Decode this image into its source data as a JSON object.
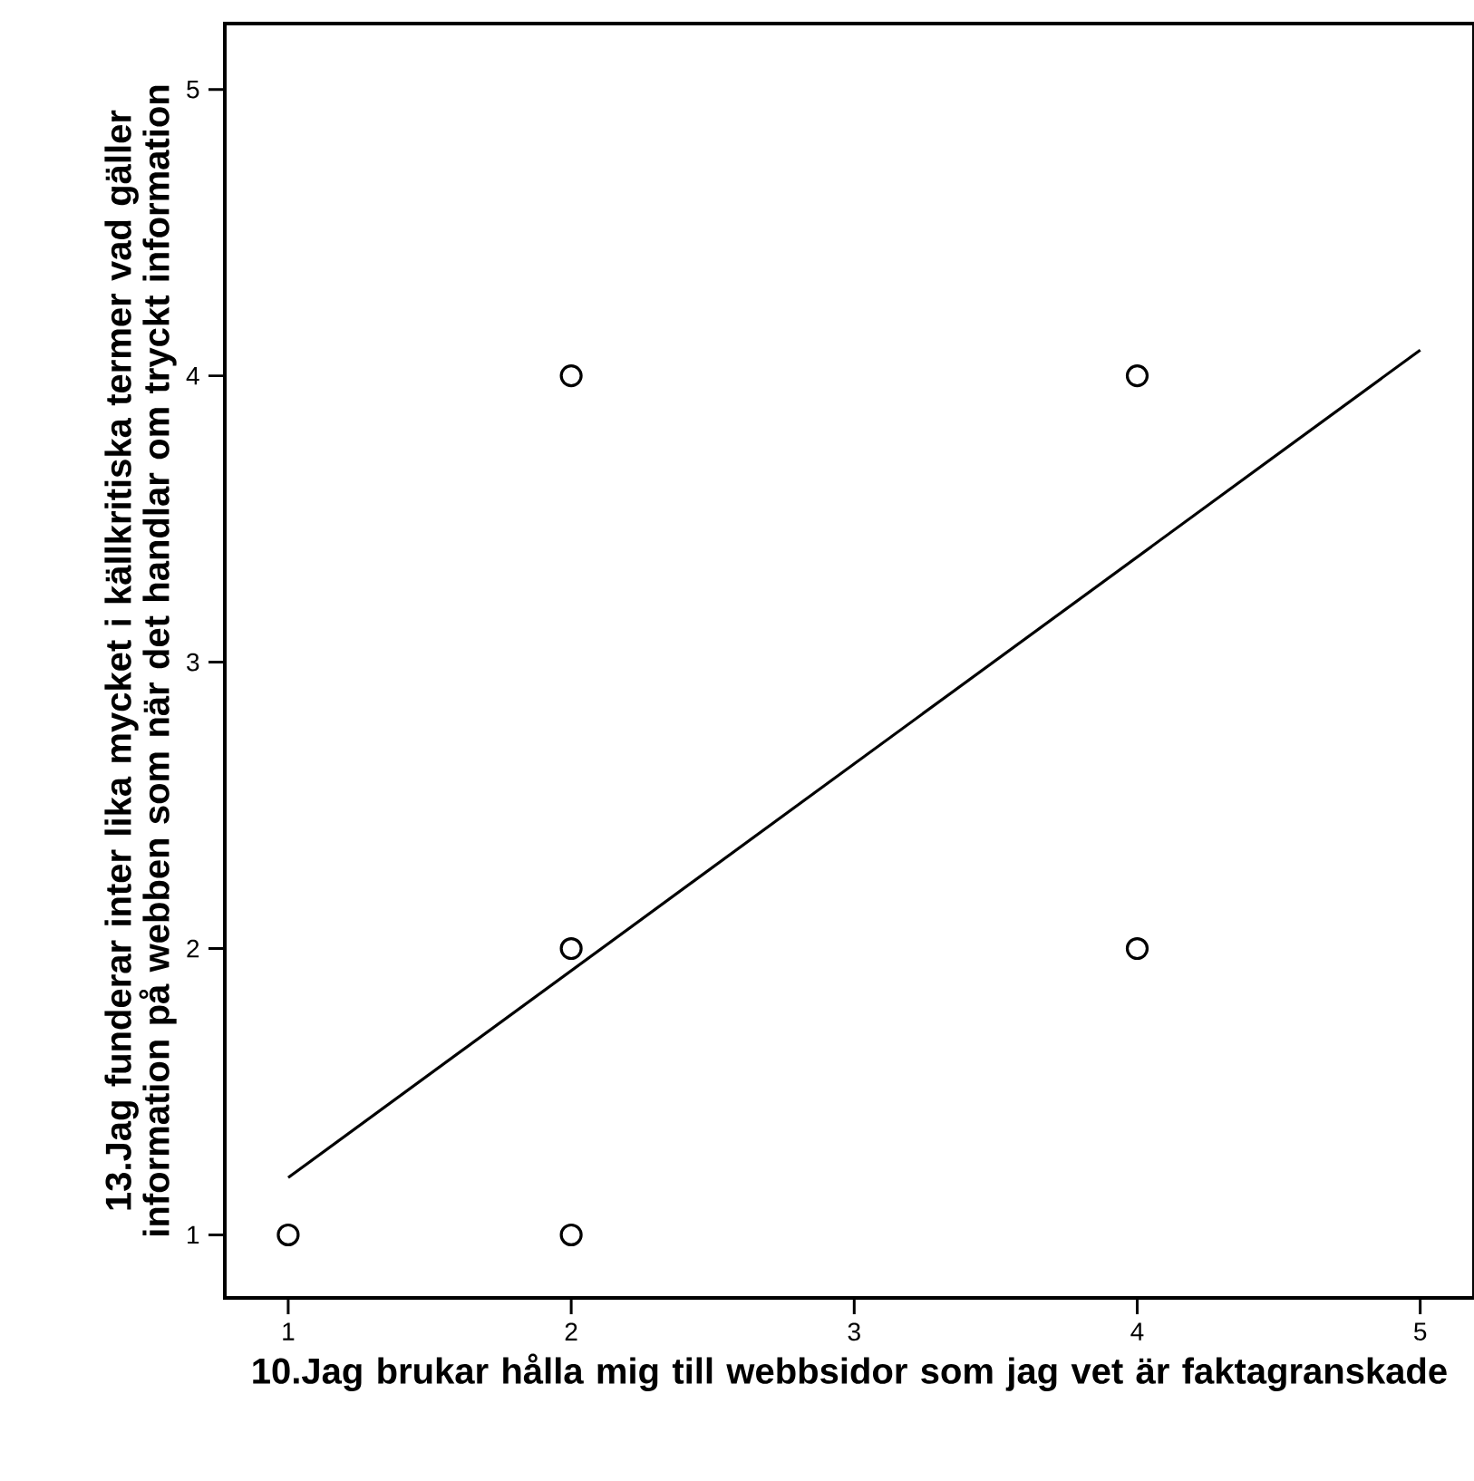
{
  "chart_data": {
    "type": "scatter",
    "xlabel": "10.Jag brukar hålla mig till webbsidor som jag vet är faktagranskade",
    "ylabel": "13.Jag funderar inter lika mycket i källkritiska termer vad gäller information på webben som när det handlar om tryckt information",
    "xlim": [
      0.776,
      5.19
    ],
    "ylim": [
      0.78,
      5.23
    ],
    "xticks": [
      1,
      2,
      3,
      4,
      5
    ],
    "yticks": [
      1,
      2,
      3,
      4,
      5
    ],
    "grid": false,
    "series": [
      {
        "marker": "circle",
        "color": "#000000",
        "x": [
          1,
          2,
          2,
          2,
          4,
          4
        ],
        "values": [
          1,
          4,
          2,
          1,
          4,
          2
        ]
      },
      {
        "type": "line",
        "marker": "none",
        "color": "#000000",
        "x": [
          1,
          5
        ],
        "values": [
          1.2,
          4.09
        ]
      }
    ]
  }
}
